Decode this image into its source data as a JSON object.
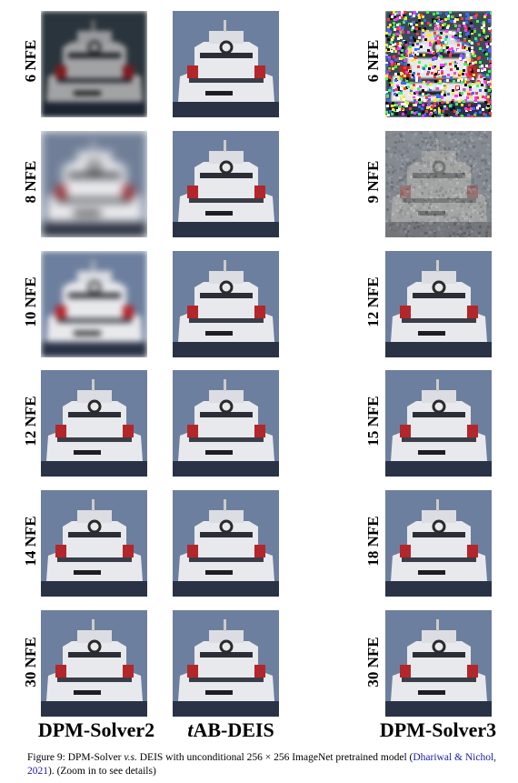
{
  "columns": [
    "DPM-Solver2",
    "AB-DEIS",
    "DPM-Solver3"
  ],
  "column_prefix_italic": [
    "",
    "t",
    ""
  ],
  "rows": [
    {
      "left": "6 NFE",
      "right": "6 NFE"
    },
    {
      "left": "8 NFE",
      "right": "9 NFE"
    },
    {
      "left": "10 NFE",
      "right": "12 NFE"
    },
    {
      "left": "12 NFE",
      "right": "15 NFE"
    },
    {
      "left": "14 NFE",
      "right": "18 NFE"
    },
    {
      "left": "30 NFE",
      "right": "30 NFE"
    }
  ],
  "caption": {
    "prefix": "Figure 9: DPM-Solver ",
    "vs": "v.s.",
    "middle": " DEIS with unconditional 256 × 256 ImageNet pretrained model (",
    "cite": "Dhariwal & Nichol, 2021",
    "suffix": "). (Zoom in to see details)"
  },
  "colors": {
    "sky": "#6d7f9e",
    "hull": "#e8e9ec",
    "water": "#2a3246",
    "accent_red": "#b3262a",
    "cite_blue": "#1a1aa6"
  }
}
